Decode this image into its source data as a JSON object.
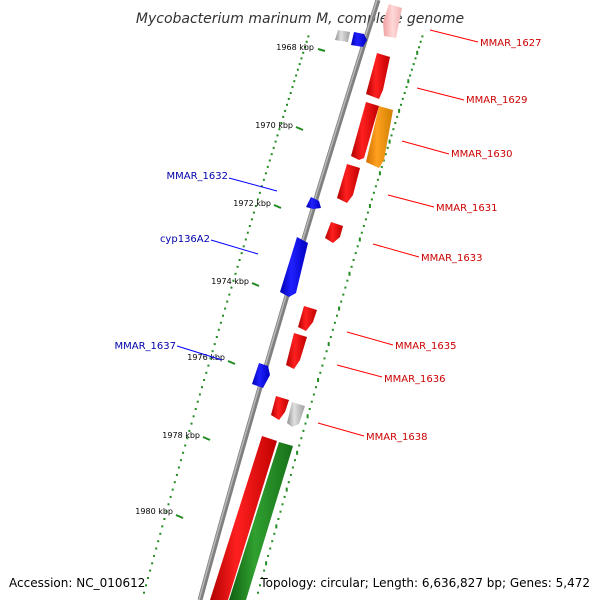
{
  "title": "Mycobacterium marinum M, complete genome",
  "footer": {
    "accession": "Accession: NC_010612",
    "summary": "Topology: circular; Length: 6,636,827 bp; Genes: 5,472"
  },
  "colors": {
    "backbone": "#808080",
    "tick": "#228B22",
    "forward_gene": "#ff0000",
    "reverse_gene": "#0000ff",
    "pseudo_gene": "#c0c0c0",
    "orange_gene": "#ff9900",
    "green_gene": "#228B22",
    "forward_label": "#cc0000",
    "reverse_label": "#0000aa"
  },
  "ticks": [
    "1968 kbp",
    "1970 kbp",
    "1972 kbp",
    "1974 kbp",
    "1976 kbp",
    "1978 kbp",
    "1980 kbp"
  ],
  "labels_right": [
    "MMAR_1627",
    "MMAR_1629",
    "MMAR_1630",
    "MMAR_1631",
    "MMAR_1633",
    "MMAR_1635",
    "MMAR_1636",
    "MMAR_1638"
  ],
  "labels_left": [
    "MMAR_1632",
    "cyp136A2",
    "MMAR_1637"
  ]
}
